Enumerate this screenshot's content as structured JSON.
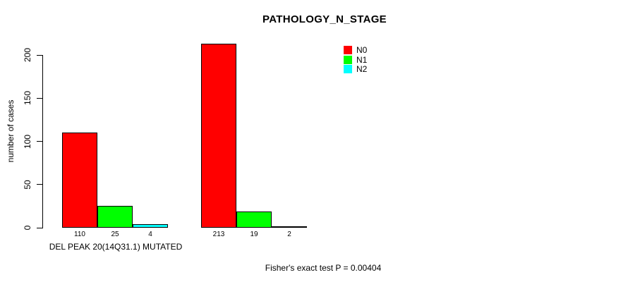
{
  "chart_data": {
    "type": "bar",
    "title": "PATHOLOGY_N_STAGE",
    "ylabel": "number of cases",
    "xlabel": "",
    "ylim": [
      0,
      200
    ],
    "yticks": [
      0,
      50,
      100,
      150,
      200
    ],
    "grid": false,
    "categories": [
      "DEL PEAK 20(14Q31.1) MUTATED",
      ""
    ],
    "series": [
      {
        "name": "N0",
        "color": "#ff0000",
        "values": [
          110,
          213
        ]
      },
      {
        "name": "N1",
        "color": "#00ff00",
        "values": [
          25,
          19
        ]
      },
      {
        "name": "N2",
        "color": "#00ffff",
        "values": [
          4,
          2
        ]
      }
    ],
    "bar_value_labels": [
      [
        "110",
        "25",
        "4"
      ],
      [
        "213",
        "19",
        "2"
      ]
    ],
    "legend": {
      "position": "top-right",
      "entries": [
        "N0",
        "N1",
        "N2"
      ]
    },
    "footer": "Fisher's exact test P = 0.00404",
    "colors": {
      "background": "#ffffff",
      "axis": "#000000",
      "text": "#000000",
      "bar_border": "#000000"
    }
  }
}
